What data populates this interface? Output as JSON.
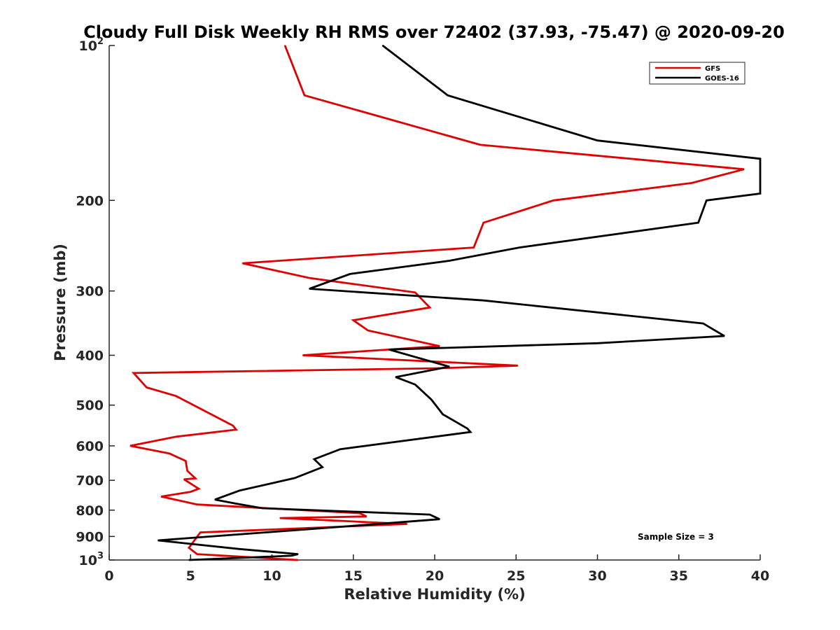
{
  "chart_data": {
    "type": "line",
    "title": "Cloudy Full Disk Weekly RH RMS over 72402 (37.93, -75.47) @ 2020-09-20",
    "xlabel": "Relative Humidity (%)",
    "ylabel": "Pressure (mb)",
    "xlim": [
      0,
      40
    ],
    "ylim": [
      100,
      1000
    ],
    "y_scale": "log",
    "y_reversed": true,
    "x_ticks": [
      "0",
      "5",
      "10",
      "15",
      "20",
      "25",
      "30",
      "35",
      "40"
    ],
    "y_ticks": [
      {
        "value": 100,
        "base": "10",
        "exp": "2"
      },
      {
        "value": 200,
        "label": "200"
      },
      {
        "value": 300,
        "label": "300"
      },
      {
        "value": 400,
        "label": "400"
      },
      {
        "value": 500,
        "label": "500"
      },
      {
        "value": 600,
        "label": "600"
      },
      {
        "value": 700,
        "label": "700"
      },
      {
        "value": 800,
        "label": "800"
      },
      {
        "value": 900,
        "label": "900"
      },
      {
        "value": 1000,
        "base": "10",
        "exp": "3"
      }
    ],
    "grid": false,
    "legend_position": "top-right",
    "annotation": "Sample Size = 3",
    "series": [
      {
        "name": "GFS",
        "color": "#e00000",
        "points": [
          [
            10.8,
            100
          ],
          [
            12.0,
            125
          ],
          [
            22.8,
            156
          ],
          [
            39.0,
            174
          ],
          [
            35.8,
            185
          ],
          [
            27.3,
            200
          ],
          [
            23.0,
            221
          ],
          [
            22.4,
            247
          ],
          [
            8.2,
            265
          ],
          [
            12.3,
            283
          ],
          [
            18.8,
            302
          ],
          [
            19.7,
            323
          ],
          [
            15.0,
            342
          ],
          [
            15.9,
            358
          ],
          [
            20.3,
            384
          ],
          [
            11.9,
            400
          ],
          [
            25.1,
            419
          ],
          [
            20.1,
            424
          ],
          [
            1.5,
            433
          ],
          [
            2.3,
            462
          ],
          [
            4.1,
            480
          ],
          [
            7.6,
            548
          ],
          [
            7.8,
            558
          ],
          [
            4.1,
            576
          ],
          [
            1.3,
            600
          ],
          [
            3.7,
            621
          ],
          [
            4.7,
            642
          ],
          [
            4.8,
            671
          ],
          [
            5.3,
            694
          ],
          [
            4.6,
            697
          ],
          [
            5.5,
            727
          ],
          [
            5.0,
            737
          ],
          [
            3.2,
            753
          ],
          [
            5.4,
            780
          ],
          [
            15.4,
            811
          ],
          [
            15.8,
            823
          ],
          [
            10.5,
            829
          ],
          [
            18.3,
            851
          ],
          [
            5.6,
            884
          ],
          [
            4.9,
            947
          ],
          [
            5.4,
            974
          ],
          [
            11.6,
            1000
          ]
        ]
      },
      {
        "name": "GOES-16",
        "color": "#000000",
        "points": [
          [
            16.8,
            100
          ],
          [
            20.8,
            125
          ],
          [
            30.0,
            153
          ],
          [
            40.0,
            166
          ],
          [
            40.0,
            194
          ],
          [
            36.7,
            200
          ],
          [
            36.2,
            221
          ],
          [
            25.2,
            247
          ],
          [
            20.9,
            262
          ],
          [
            14.8,
            278
          ],
          [
            12.3,
            297
          ],
          [
            23.0,
            313
          ],
          [
            36.5,
            347
          ],
          [
            37.8,
            367
          ],
          [
            30.0,
            379
          ],
          [
            17.2,
            390
          ],
          [
            20.9,
            421
          ],
          [
            17.6,
            441
          ],
          [
            18.8,
            456
          ],
          [
            19.8,
            488
          ],
          [
            20.5,
            521
          ],
          [
            22.0,
            555
          ],
          [
            22.2,
            564
          ],
          [
            14.2,
            609
          ],
          [
            12.6,
            637
          ],
          [
            13.1,
            660
          ],
          [
            11.4,
            693
          ],
          [
            8.0,
            733
          ],
          [
            6.5,
            763
          ],
          [
            7.8,
            777
          ],
          [
            9.4,
            793
          ],
          [
            19.7,
            816
          ],
          [
            20.3,
            833
          ],
          [
            14.2,
            862
          ],
          [
            3.0,
            916
          ],
          [
            8.0,
            952
          ],
          [
            11.6,
            974
          ],
          [
            11.2,
            981
          ],
          [
            4.9,
            1000
          ]
        ]
      }
    ]
  }
}
